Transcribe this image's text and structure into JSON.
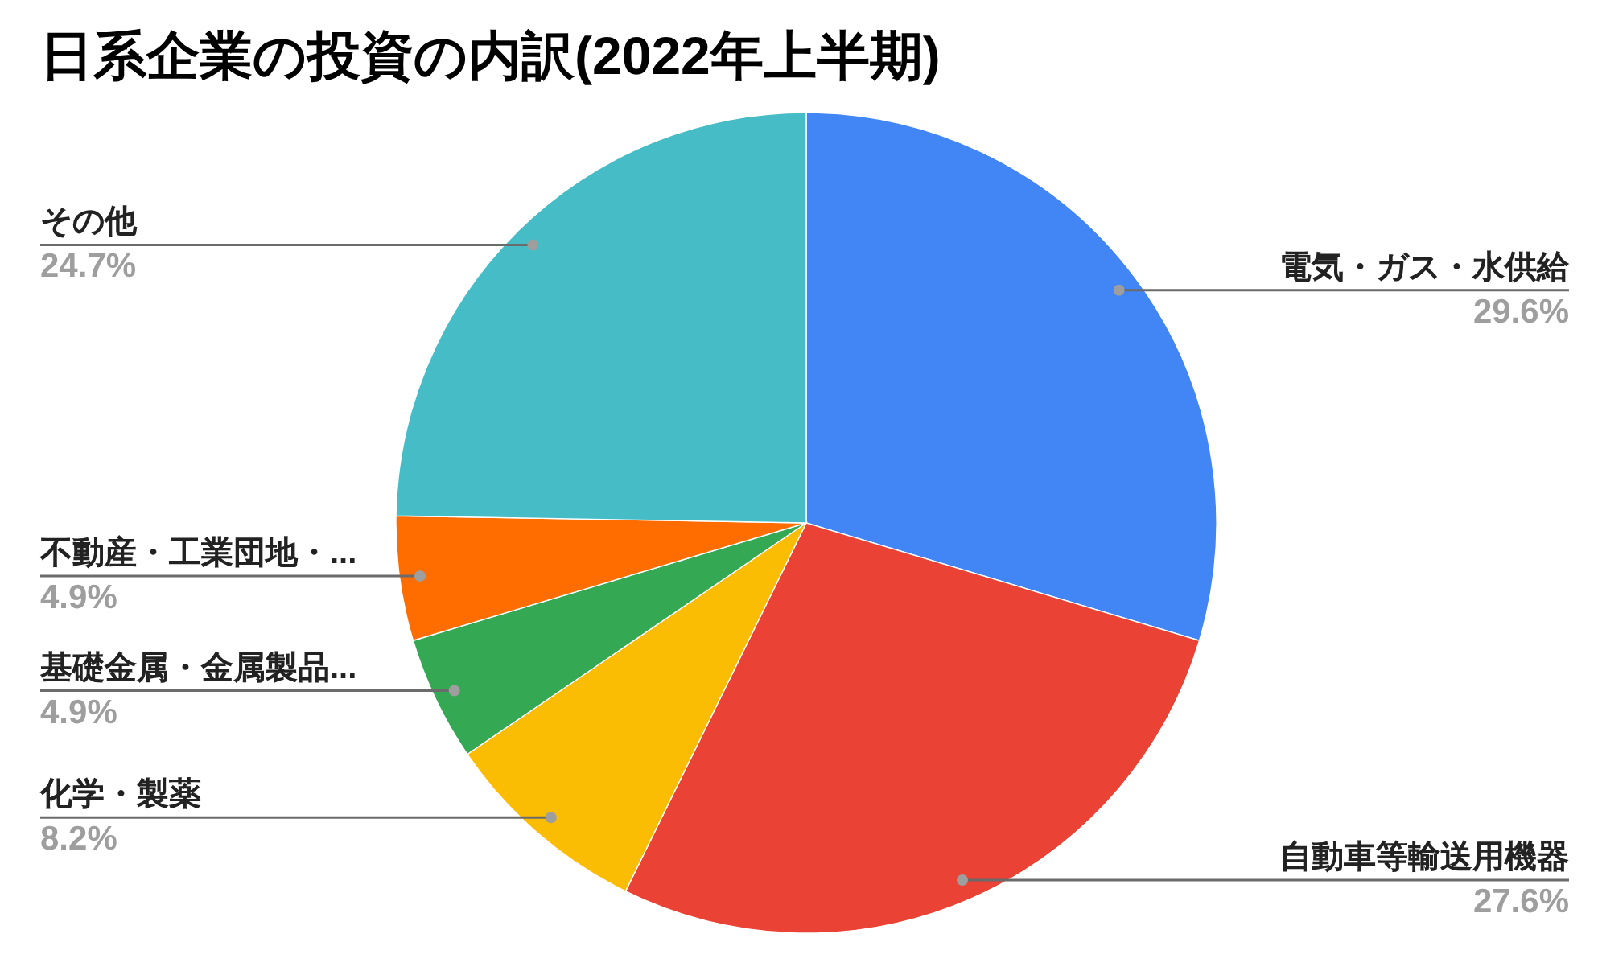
{
  "chart_data": {
    "type": "pie",
    "title": "日系企業の投資の内訳(2022年上半期)",
    "categories": [
      "電気・ガス・水供給",
      "自動車等輸送用機器",
      "化学・製薬",
      "基礎金属・金属製品...",
      "不動産・工業団地・...",
      "その他"
    ],
    "values": [
      29.6,
      27.6,
      8.2,
      4.9,
      4.9,
      24.7
    ],
    "colors": [
      "#4285f4",
      "#ea4335",
      "#fbbc04",
      "#34a853",
      "#ff6d01",
      "#46bdc6"
    ],
    "value_labels": [
      "29.6%",
      "27.6%",
      "8.2%",
      "4.9%",
      "4.9%",
      "24.7%"
    ]
  }
}
